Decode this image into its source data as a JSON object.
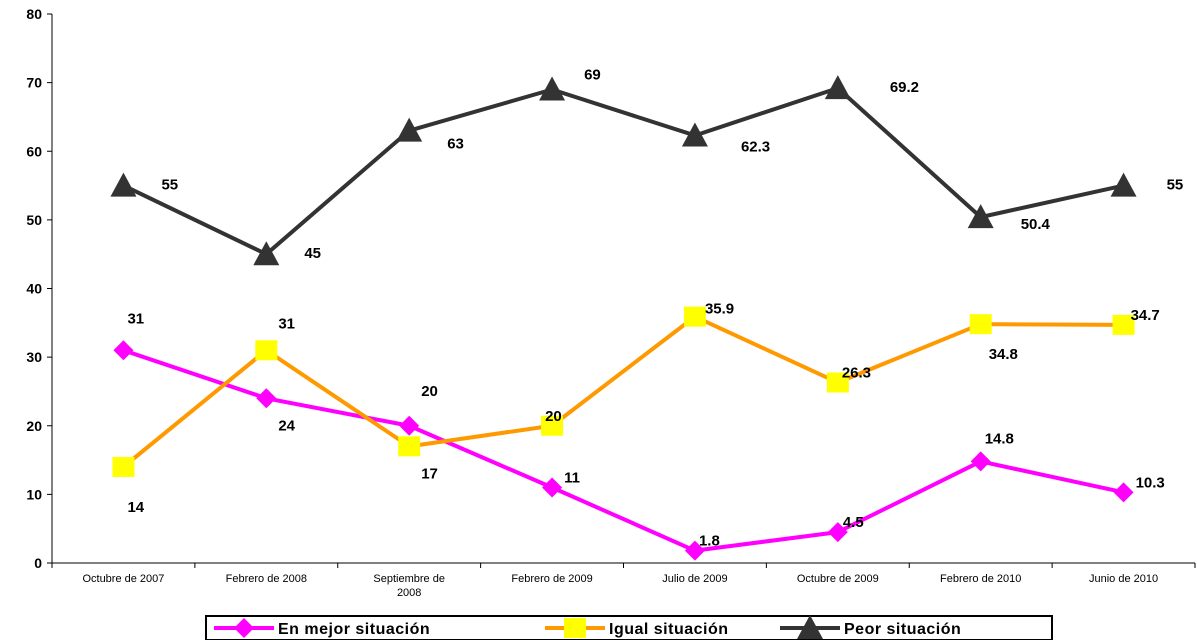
{
  "chart_data": {
    "type": "line",
    "categories": [
      [
        "Octubre de 2007"
      ],
      [
        "Febrero de 2008"
      ],
      [
        "Septiembre de",
        "2008"
      ],
      [
        "Febrero de 2009"
      ],
      [
        "Julio de 2009"
      ],
      [
        "Octubre de 2009"
      ],
      [
        "Febrero de 2010"
      ],
      [
        "Junio de 2010"
      ]
    ],
    "ylim": [
      0,
      80
    ],
    "yticks": [
      "0",
      "10",
      "20",
      "30",
      "40",
      "50",
      "60",
      "70",
      "80"
    ],
    "grid": false,
    "legend_position": "bottom",
    "series": [
      {
        "name": "En mejor situación",
        "color": "#ff00ff",
        "marker": "diamond",
        "values": [
          31,
          24,
          20,
          11,
          1.8,
          4.5,
          14.8,
          10.3
        ],
        "labels": [
          "31",
          "24",
          "20",
          "11",
          "1.8",
          "4.5",
          "14.8",
          "10.3"
        ]
      },
      {
        "name": "Igual situación",
        "color": "#ff9900",
        "marker_color": "#ffff00",
        "marker": "square",
        "values": [
          14,
          31,
          17,
          20,
          35.9,
          26.3,
          34.8,
          34.7
        ],
        "labels": [
          "14",
          "31",
          "17",
          "20",
          "35.9",
          "26.3",
          "34.8",
          "34.7"
        ]
      },
      {
        "name": "Peor situación",
        "color": "#333333",
        "marker": "triangle",
        "values": [
          55,
          45,
          63,
          69,
          62.3,
          69.2,
          50.4,
          55
        ],
        "labels": [
          "55",
          "45",
          "63",
          "69",
          "62.3",
          "69.2",
          "50.4",
          "55"
        ]
      }
    ]
  }
}
